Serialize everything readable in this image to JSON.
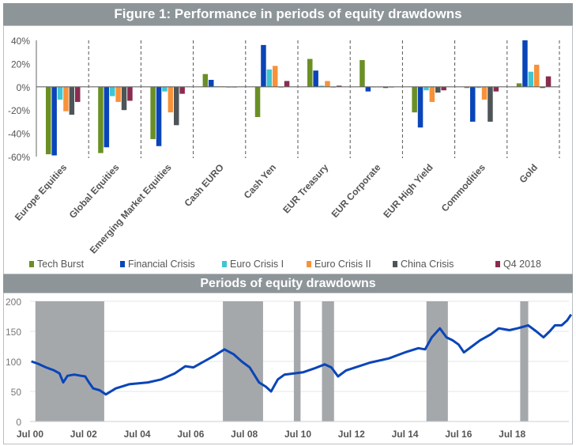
{
  "figure_title": "Figure 1: Performance in periods of equity drawdowns",
  "chart_data": [
    {
      "type": "bar",
      "title": "",
      "categories": [
        "Europe Equities",
        "Global Equities",
        "Emerging Market Equities",
        "Cash EURO",
        "Cash Yen",
        "EUR Treasury",
        "EUR Corporate",
        "EUR High Yield",
        "Commodities",
        "Gold"
      ],
      "yticks": [
        "40%",
        "20%",
        "0%",
        "-20%",
        "-40%",
        "-60%"
      ],
      "ylim": [
        -60,
        40
      ],
      "legend_position": "bottom",
      "series": [
        {
          "name": "Tech Burst",
          "color": "#6a8f24",
          "values": [
            -58,
            -57,
            -45,
            11,
            -26,
            24,
            23,
            -22,
            -1,
            3
          ]
        },
        {
          "name": "Financial Crisis",
          "color": "#0a45b8",
          "values": [
            -59,
            -52,
            -51,
            6,
            36,
            14,
            -4,
            -35,
            -30,
            40
          ]
        },
        {
          "name": "Euro Crisis I",
          "color": "#3ec6d2",
          "values": [
            -11,
            -8,
            -4,
            0.5,
            15,
            1,
            0,
            -3,
            -1,
            13
          ]
        },
        {
          "name": "Euro Crisis II",
          "color": "#f7923a",
          "values": [
            -21,
            -13,
            -22,
            0.5,
            18,
            5,
            0,
            -13,
            -11,
            19
          ]
        },
        {
          "name": "China Crisis",
          "color": "#4e5559",
          "values": [
            -24,
            -20,
            -33,
            0,
            0,
            0,
            -1,
            -5,
            -30,
            -1
          ]
        },
        {
          "name": "Q4 2018",
          "color": "#8a2b4f",
          "values": [
            -13,
            -12,
            -6,
            0,
            5,
            1,
            0,
            -3,
            -4,
            9
          ]
        }
      ]
    },
    {
      "type": "line",
      "title": "Periods of equity drawdowns",
      "xticks": [
        "Jul 00",
        "Jul 02",
        "Jul 04",
        "Jul 06",
        "Jul 08",
        "Jul 10",
        "Jul 12",
        "Jul 14",
        "Jul 16",
        "Jul 18"
      ],
      "yticks": [
        "0",
        "50",
        "100",
        "150",
        "200"
      ],
      "ylim": [
        0,
        200
      ],
      "grid": true,
      "line_color": "#0a45b8",
      "shade_color": "#a5a8ab",
      "shaded_periods": [
        [
          2000.7,
          2003.27
        ],
        [
          2007.7,
          2009.2
        ],
        [
          2010.35,
          2010.6
        ],
        [
          2011.4,
          2011.85
        ],
        [
          2015.3,
          2016.1
        ],
        [
          2018.8,
          2019.1
        ]
      ],
      "series": [
        {
          "x": [
            2000.55,
            2000.8,
            2001.1,
            2001.4,
            2001.6,
            2001.74,
            2001.9,
            2002.15,
            2002.4,
            2002.56,
            2002.7,
            2002.86,
            2003.1,
            2003.33,
            2003.7,
            2004.2,
            2004.9,
            2005.4,
            2005.9,
            2006.3,
            2006.6,
            2007.0,
            2007.4,
            2007.76,
            2008.1,
            2008.4,
            2008.7,
            2009.05,
            2009.3,
            2009.5,
            2009.75,
            2010.0,
            2010.35,
            2010.7,
            2011.1,
            2011.5,
            2011.75,
            2012.0,
            2012.3,
            2012.65,
            2013.2,
            2013.9,
            2014.5,
            2015.0,
            2015.25,
            2015.5,
            2015.8,
            2016.05,
            2016.28,
            2016.5,
            2016.7,
            2017.0,
            2017.3,
            2017.7,
            2018.0,
            2018.4,
            2018.7,
            2019.1,
            2019.4,
            2019.67,
            2019.9,
            2020.1,
            2020.35,
            2020.55,
            2020.7
          ],
          "y": [
            100,
            96,
            90,
            85,
            80,
            65,
            76,
            78,
            76,
            75,
            65,
            55,
            52,
            45,
            55,
            62,
            65,
            70,
            80,
            92,
            90,
            100,
            110,
            120,
            112,
            100,
            90,
            65,
            58,
            50,
            70,
            78,
            80,
            82,
            88,
            95,
            90,
            75,
            85,
            90,
            98,
            105,
            115,
            122,
            120,
            140,
            155,
            140,
            135,
            128,
            115,
            125,
            135,
            145,
            155,
            152,
            155,
            160,
            150,
            140,
            150,
            160,
            160,
            168,
            178
          ]
        }
      ]
    }
  ]
}
